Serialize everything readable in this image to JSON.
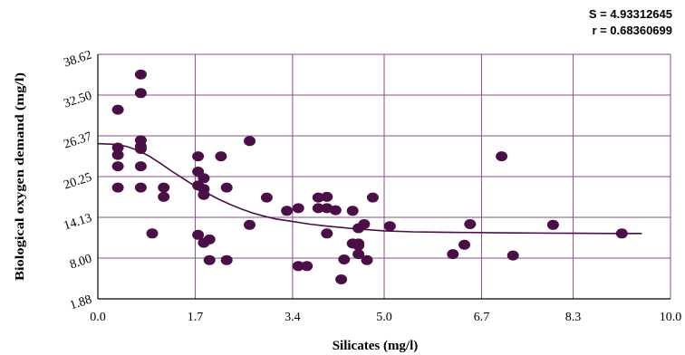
{
  "chart_data": {
    "type": "scatter",
    "title": "",
    "xlabel": "Silicates (mg/l)",
    "ylabel": "Biological oxygen demand (mg/l)",
    "xlim": [
      0.0,
      10.0
    ],
    "ylim": [
      1.88,
      38.62
    ],
    "x_tick_labels": [
      "0.0",
      "1.7",
      "3.4",
      "5.0",
      "6.7",
      "8.3",
      "10.0"
    ],
    "y_tick_labels": [
      "1.88",
      "8.00",
      "14.13",
      "20.25",
      "26.37",
      "32.50",
      "38.62"
    ],
    "grid": true,
    "colors": {
      "points": "#4a0f47",
      "curve": "#4a0f47",
      "grid": "#8a4f8a"
    },
    "stats": {
      "s": "S = 4.93312645",
      "r": "r = 0.68360699"
    },
    "points": [
      [
        0.35,
        30.3
      ],
      [
        0.35,
        24.6
      ],
      [
        0.35,
        23.5
      ],
      [
        0.35,
        21.8
      ],
      [
        0.35,
        18.6
      ],
      [
        0.75,
        35.6
      ],
      [
        0.75,
        32.8
      ],
      [
        0.75,
        25.7
      ],
      [
        0.75,
        24.8
      ],
      [
        0.75,
        24.4
      ],
      [
        0.75,
        21.8
      ],
      [
        0.75,
        18.6
      ],
      [
        0.95,
        11.7
      ],
      [
        1.15,
        18.6
      ],
      [
        1.15,
        17.2
      ],
      [
        1.75,
        23.3
      ],
      [
        1.75,
        21.0
      ],
      [
        1.75,
        18.9
      ],
      [
        1.75,
        11.5
      ],
      [
        1.85,
        20.0
      ],
      [
        1.85,
        18.4
      ],
      [
        1.85,
        17.5
      ],
      [
        1.85,
        10.3
      ],
      [
        1.95,
        10.8
      ],
      [
        1.95,
        7.7
      ],
      [
        2.15,
        23.3
      ],
      [
        2.25,
        18.6
      ],
      [
        2.25,
        7.7
      ],
      [
        2.65,
        25.6
      ],
      [
        2.65,
        13.0
      ],
      [
        2.95,
        17.1
      ],
      [
        3.3,
        15.1
      ],
      [
        3.5,
        15.5
      ],
      [
        3.5,
        6.8
      ],
      [
        3.65,
        6.8
      ],
      [
        3.85,
        17.1
      ],
      [
        3.85,
        15.5
      ],
      [
        4.0,
        17.2
      ],
      [
        4.0,
        15.5
      ],
      [
        4.0,
        11.7
      ],
      [
        4.15,
        15.2
      ],
      [
        4.25,
        4.8
      ],
      [
        4.3,
        7.8
      ],
      [
        4.45,
        15.1
      ],
      [
        4.45,
        10.2
      ],
      [
        4.55,
        12.5
      ],
      [
        4.55,
        10.2
      ],
      [
        4.55,
        9.9
      ],
      [
        4.55,
        8.6
      ],
      [
        4.65,
        13.1
      ],
      [
        4.7,
        7.7
      ],
      [
        4.8,
        17.1
      ],
      [
        5.1,
        12.8
      ],
      [
        6.2,
        8.6
      ],
      [
        6.4,
        10.0
      ],
      [
        6.5,
        13.1
      ],
      [
        7.05,
        23.3
      ],
      [
        7.25,
        8.4
      ],
      [
        7.95,
        13.0
      ],
      [
        9.15,
        11.7
      ]
    ],
    "fit_curve": [
      [
        0.0,
        25.2
      ],
      [
        0.3,
        25.1
      ],
      [
        0.5,
        24.8
      ],
      [
        0.7,
        24.2
      ],
      [
        0.9,
        23.3
      ],
      [
        1.1,
        22.2
      ],
      [
        1.3,
        21.0
      ],
      [
        1.5,
        19.9
      ],
      [
        1.7,
        18.8
      ],
      [
        1.9,
        17.8
      ],
      [
        2.1,
        16.9
      ],
      [
        2.3,
        16.1
      ],
      [
        2.5,
        15.4
      ],
      [
        2.7,
        14.8
      ],
      [
        2.9,
        14.3
      ],
      [
        3.1,
        13.9
      ],
      [
        3.4,
        13.5
      ],
      [
        3.7,
        13.1
      ],
      [
        4.0,
        12.8
      ],
      [
        4.5,
        12.4
      ],
      [
        5.0,
        12.1
      ],
      [
        5.5,
        11.95
      ],
      [
        6.0,
        11.9
      ],
      [
        7.0,
        11.8
      ],
      [
        8.0,
        11.75
      ],
      [
        9.0,
        11.7
      ],
      [
        9.5,
        11.7
      ]
    ]
  }
}
